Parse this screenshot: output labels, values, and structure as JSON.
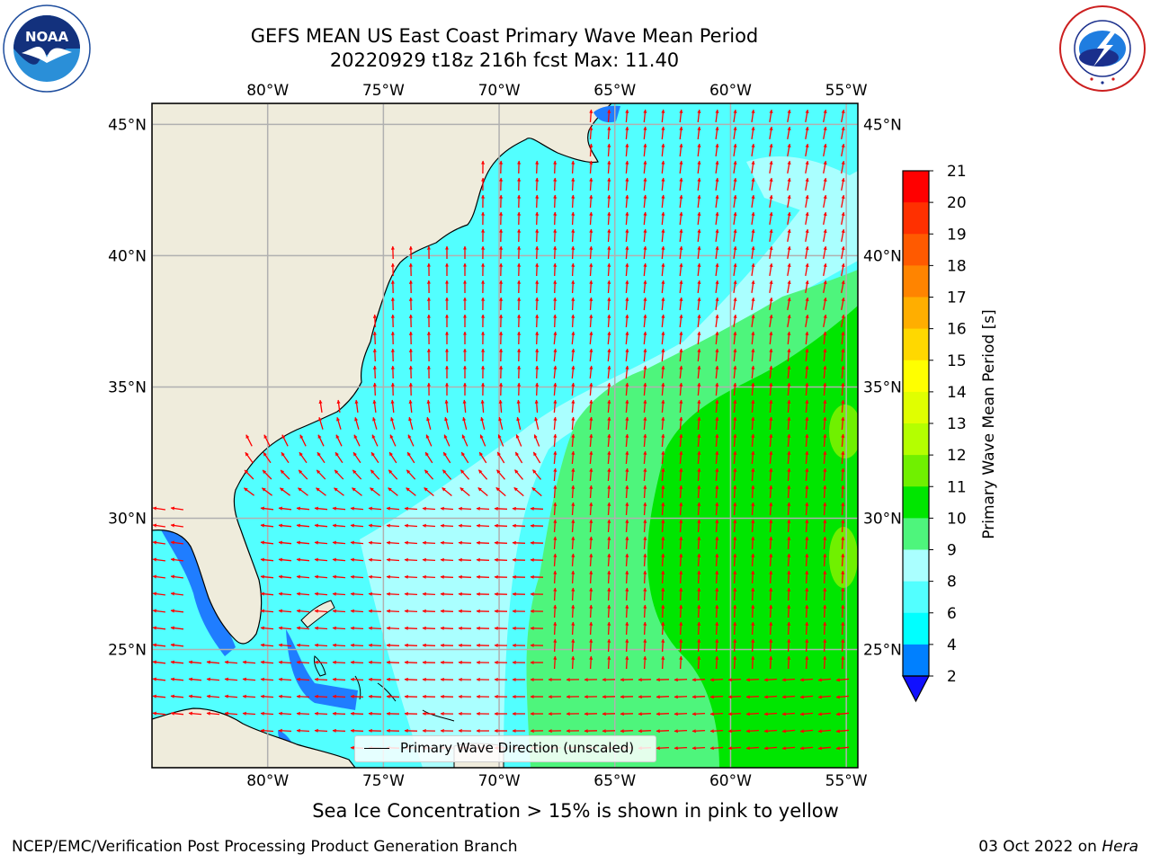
{
  "title": {
    "line1": "GEFS MEAN US East Coast Primary Wave Mean Period",
    "line2": "20220929 t18z 216h fcst   Max: 11.40"
  },
  "logos": {
    "left": {
      "name": "noaa-logo",
      "text": "NOAA",
      "ring_text": "NATIONAL OCEANIC AND ATMOSPHERIC ADMINISTRATION · U.S. DEPARTMENT OF COMMERCE"
    },
    "right": {
      "name": "nws-logo",
      "ring_text": "NATIONAL WEATHER SERVICE"
    }
  },
  "map": {
    "lon_ticks": [
      "80°W",
      "75°W",
      "70°W",
      "65°W",
      "60°W",
      "55°W"
    ],
    "lat_ticks": [
      "45°N",
      "40°N",
      "35°N",
      "30°N",
      "25°N"
    ],
    "lon_values": [
      -80,
      -75,
      -70,
      -65,
      -60,
      -55
    ],
    "lat_values": [
      45,
      40,
      35,
      30,
      25
    ],
    "lon_range": [
      -85,
      -54.5
    ],
    "lat_range": [
      20.5,
      45.8
    ],
    "land_color": "#efecdc",
    "arrow_color": "#ff0000",
    "grid_color": "#b0b0b0"
  },
  "legend": {
    "label": "Primary Wave Direction (unscaled)"
  },
  "colorbar": {
    "label": "Primary Wave Mean Period [s]",
    "levels": [
      "21",
      "20",
      "19",
      "18",
      "17",
      "16",
      "15",
      "14",
      "13",
      "12",
      "11",
      "10",
      "9",
      "8",
      "6",
      "4",
      "2"
    ],
    "colors": [
      "#ff0000",
      "#ff3000",
      "#ff5a00",
      "#ff8400",
      "#ffae00",
      "#ffd800",
      "#ffff00",
      "#e0ff00",
      "#b4ff00",
      "#70f000",
      "#00e600",
      "#4ef57c",
      "#aaffff",
      "#52ffff",
      "#00ffff",
      "#0080ff"
    ],
    "under_color": "#1010ff"
  },
  "note": "Sea Ice Concentration > 15% is shown in pink to yellow",
  "footer": {
    "left": "NCEP/EMC/Verification Post Processing Product Generation Branch",
    "date": "03 Oct 2022 on ",
    "host": "Hera"
  }
}
